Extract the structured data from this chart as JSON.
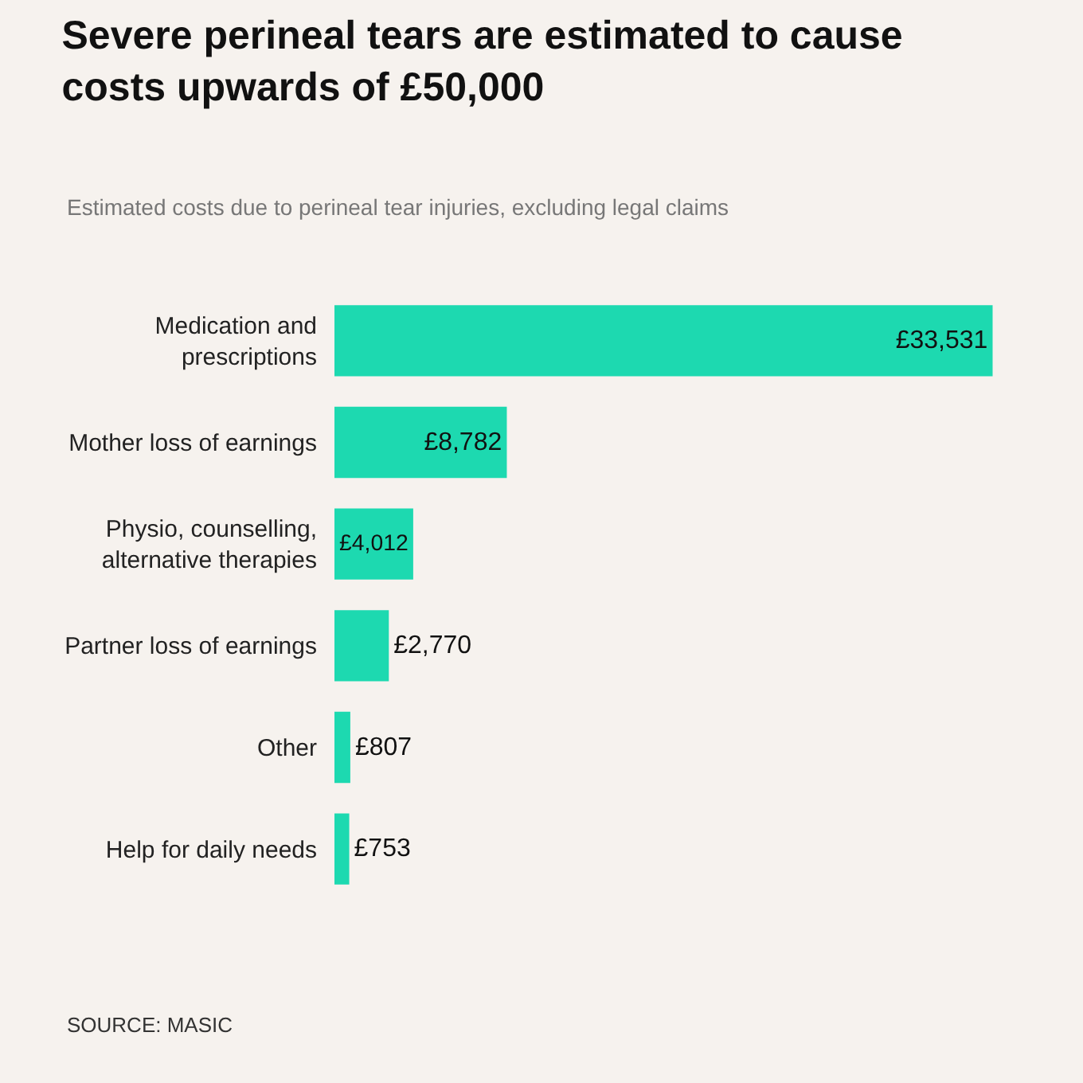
{
  "chart_data": {
    "type": "bar",
    "orientation": "horizontal",
    "title": "Severe perineal tears are estimated to cause costs upwards of £50,000",
    "subtitle": "Estimated costs due to perineal tear injuries, excluding legal claims",
    "categories": [
      "Medication and prescriptions",
      "Mother loss of earnings",
      "Physio, counselling, alternative therapies",
      "Partner loss of earnings",
      "Other",
      "Help for daily needs"
    ],
    "values": [
      33531,
      8782,
      4012,
      2770,
      807,
      753
    ],
    "value_labels": [
      "£33,531",
      "£8,782",
      "£4,012",
      "£2,770",
      "£807",
      "£753"
    ],
    "color": "#1dd9b0",
    "legend": false,
    "annotations": [
      "SOURCE: MASIC"
    ]
  }
}
